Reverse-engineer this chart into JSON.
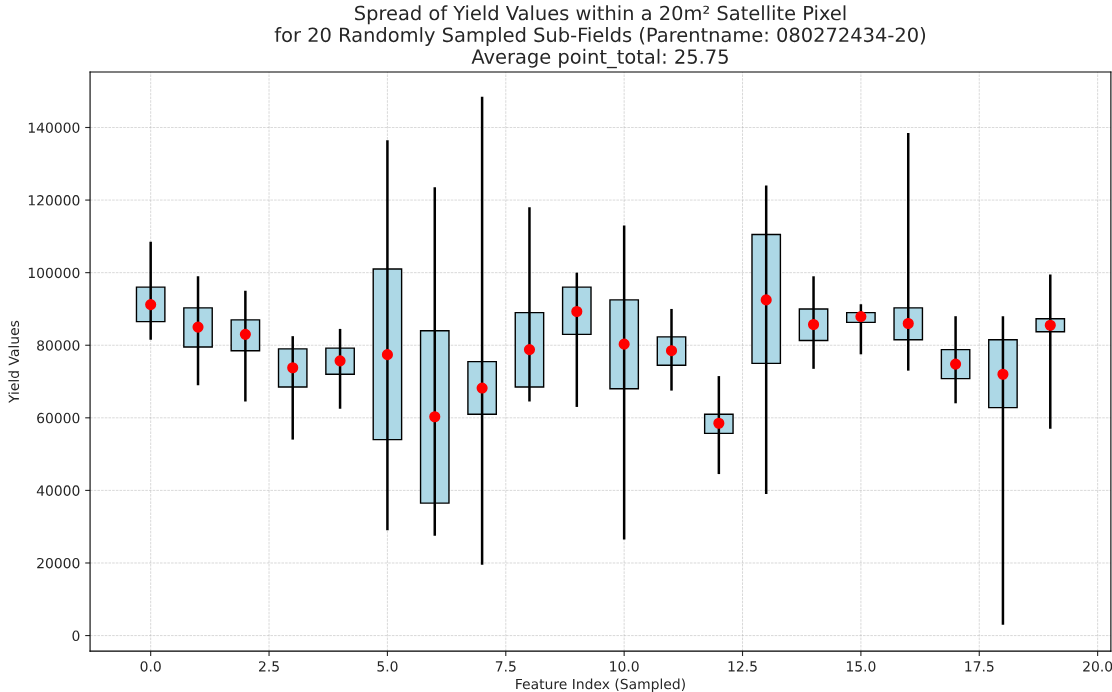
{
  "chart_data": {
    "type": "box",
    "title": "Spread of Yield Values within a 20m² Satellite Pixel\nfor 20 Randomly Sampled Sub-Fields (Parentname: 080272434-20)\nAverage point_total: 25.75",
    "xlabel": "Feature Index (Sampled)",
    "ylabel": "Yield Values",
    "x": [
      0,
      1,
      2,
      3,
      4,
      5,
      6,
      7,
      8,
      9,
      10,
      11,
      12,
      13,
      14,
      15,
      16,
      17,
      18,
      19
    ],
    "color": "#add8e6",
    "boxes": [
      {
        "low": 81500,
        "q1": 86500,
        "median": 91200,
        "q3": 96000,
        "high": 108500
      },
      {
        "low": 69000,
        "q1": 79500,
        "median": 85000,
        "q3": 90300,
        "high": 99000
      },
      {
        "low": 64500,
        "q1": 78500,
        "median": 83000,
        "q3": 87000,
        "high": 95000
      },
      {
        "low": 54000,
        "q1": 68500,
        "median": 73800,
        "q3": 79000,
        "high": 82500
      },
      {
        "low": 62500,
        "q1": 72000,
        "median": 75700,
        "q3": 79200,
        "high": 84500
      },
      {
        "low": 29000,
        "q1": 54000,
        "median": 77400,
        "q3": 101000,
        "high": 136500
      },
      {
        "low": 27500,
        "q1": 36500,
        "median": 60300,
        "q3": 84000,
        "high": 123500
      },
      {
        "low": 19500,
        "q1": 61000,
        "median": 68200,
        "q3": 75500,
        "high": 148500
      },
      {
        "low": 64500,
        "q1": 68500,
        "median": 78800,
        "q3": 89000,
        "high": 118000
      },
      {
        "low": 63000,
        "q1": 83000,
        "median": 89300,
        "q3": 96000,
        "high": 100000
      },
      {
        "low": 26500,
        "q1": 68000,
        "median": 80300,
        "q3": 92500,
        "high": 113000
      },
      {
        "low": 67500,
        "q1": 74500,
        "median": 78500,
        "q3": 82300,
        "high": 90000
      },
      {
        "low": 44500,
        "q1": 55700,
        "median": 58500,
        "q3": 61000,
        "high": 71500
      },
      {
        "low": 39000,
        "q1": 75000,
        "median": 92500,
        "q3": 110500,
        "high": 124000
      },
      {
        "low": 73500,
        "q1": 81300,
        "median": 85700,
        "q3": 90000,
        "high": 99000
      },
      {
        "low": 77500,
        "q1": 86300,
        "median": 87900,
        "q3": 89000,
        "high": 91300
      },
      {
        "low": 73000,
        "q1": 81500,
        "median": 86000,
        "q3": 90300,
        "high": 138500
      },
      {
        "low": 64000,
        "q1": 70800,
        "median": 74800,
        "q3": 78800,
        "high": 88000
      },
      {
        "low": 3000,
        "q1": 62800,
        "median": 72000,
        "q3": 81500,
        "high": 88000
      },
      {
        "low": 57000,
        "q1": 83700,
        "median": 85500,
        "q3": 87300,
        "high": 99500
      }
    ],
    "xlim": [
      -1.28,
      20.28
    ],
    "xticks": [
      {
        "value": 0,
        "label": "0.0"
      },
      {
        "value": 2.5,
        "label": "2.5"
      },
      {
        "value": 5,
        "label": "5.0"
      },
      {
        "value": 7.5,
        "label": "7.5"
      },
      {
        "value": 10,
        "label": "10.0"
      },
      {
        "value": 12.5,
        "label": "12.5"
      },
      {
        "value": 15,
        "label": "15.0"
      },
      {
        "value": 17.5,
        "label": "17.5"
      },
      {
        "value": 20,
        "label": "20.0"
      }
    ],
    "ylim": [
      -4300,
      155300
    ],
    "yticks": [
      0,
      20000,
      40000,
      60000,
      80000,
      100000,
      120000,
      140000
    ],
    "grid": true,
    "marker": "circle"
  }
}
